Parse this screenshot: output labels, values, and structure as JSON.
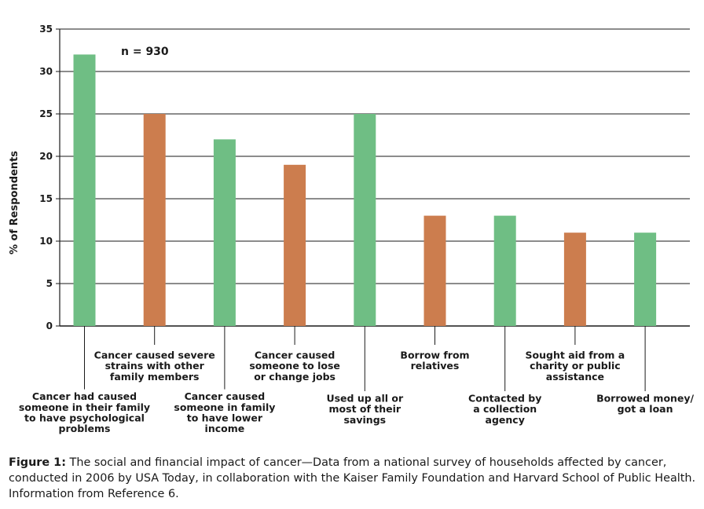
{
  "chart_data": {
    "type": "bar",
    "ylabel": "% of Respondents",
    "ylim": [
      0,
      35
    ],
    "yticks": [
      0,
      5,
      10,
      15,
      20,
      25,
      30,
      35
    ],
    "grid": true,
    "annotation": "n = 930",
    "categories": [
      "Cancer had caused someone in their family to have psychological problems",
      "Cancer caused severe strains with other family members",
      "Cancer caused someone in family to have lower income",
      "Cancer caused someone to lose or change jobs",
      "Used up all or most of their savings",
      "Borrow from relatives",
      "Contacted by a collection agency",
      "Sought aid from a charity or public assistance",
      "Borrowed money/ got a loan"
    ],
    "category_lines": [
      [
        "Cancer had caused",
        "someone in their family",
        "to have psychological",
        "problems"
      ],
      [
        "Cancer caused severe",
        "strains with other",
        "family members"
      ],
      [
        "Cancer caused",
        "someone in family",
        "to have lower",
        "income"
      ],
      [
        "Cancer caused",
        "someone to lose",
        "or change jobs"
      ],
      [
        "Used up all or",
        "most of their",
        "savings"
      ],
      [
        "Borrow from",
        "relatives"
      ],
      [
        "Contacted by",
        "a collection",
        "agency"
      ],
      [
        "Sought aid from a",
        "charity or public",
        "assistance"
      ],
      [
        "Borrowed money/",
        "got a loan"
      ]
    ],
    "values": [
      32,
      25,
      22,
      19,
      25,
      13,
      13,
      11,
      11
    ],
    "colors": [
      "#6fbe84",
      "#cc7d4e",
      "#6fbe84",
      "#cc7d4e",
      "#6fbe84",
      "#cc7d4e",
      "#6fbe84",
      "#cc7d4e",
      "#6fbe84"
    ]
  },
  "caption": {
    "label": "Figure 1:",
    "text": "The social and financial impact of cancer—Data from a national survey of households affected by cancer, conducted in 2006 by USA Today, in collaboration with the Kaiser Family Foundation and Harvard School of Public Health. Information from Reference 6."
  }
}
